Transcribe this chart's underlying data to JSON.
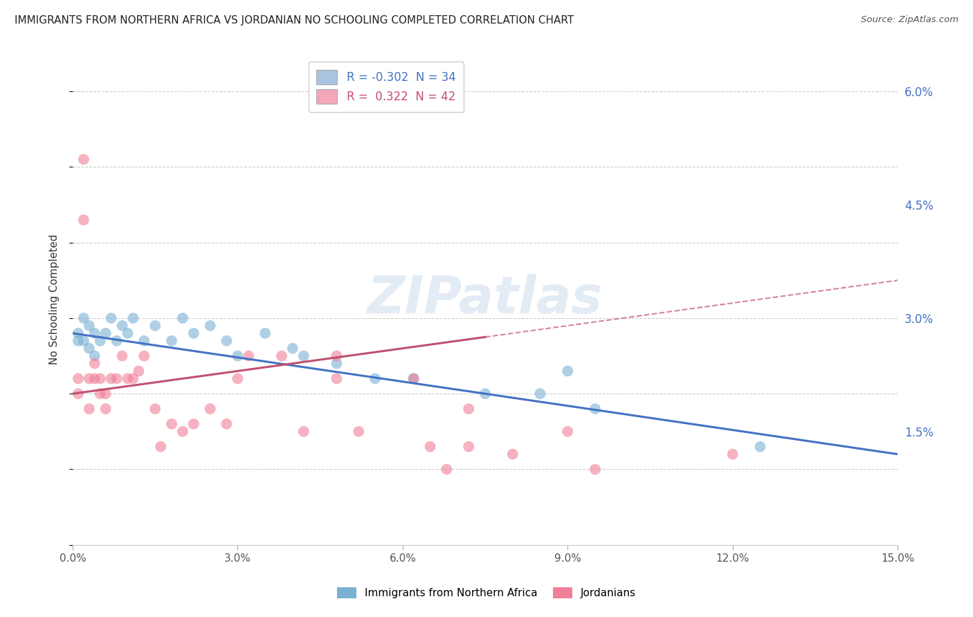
{
  "title": "IMMIGRANTS FROM NORTHERN AFRICA VS JORDANIAN NO SCHOOLING COMPLETED CORRELATION CHART",
  "source": "Source: ZipAtlas.com",
  "ylabel": "No Schooling Completed",
  "xlim": [
    0.0,
    0.15
  ],
  "ylim": [
    0.0,
    0.065
  ],
  "xticks": [
    0.0,
    0.03,
    0.06,
    0.09,
    0.12,
    0.15
  ],
  "xticklabels": [
    "0.0%",
    "3.0%",
    "6.0%",
    "9.0%",
    "12.0%",
    "15.0%"
  ],
  "yticks_right": [
    0.015,
    0.03,
    0.045,
    0.06
  ],
  "yticklabels_right": [
    "1.5%",
    "3.0%",
    "4.5%",
    "6.0%"
  ],
  "legend_line1": "R = -0.302  N = 34",
  "legend_line2": "R =  0.322  N = 42",
  "legend_color1": "#a8c4e0",
  "legend_color2": "#f4a7b9",
  "legend_text_color1": "#4472c4",
  "legend_text_color2": "#c05070",
  "series1_label": "Immigrants from Northern Africa",
  "series2_label": "Jordanians",
  "series1_color": "#7ab0d4",
  "series2_color": "#f08098",
  "line1_color": "#4472c4",
  "line2_color": "#c05070",
  "background_color": "#ffffff",
  "grid_color": "#cccccc",
  "watermark": "ZIPatlas",
  "blue_scatter_x": [
    0.001,
    0.001,
    0.002,
    0.002,
    0.003,
    0.003,
    0.004,
    0.004,
    0.005,
    0.006,
    0.007,
    0.008,
    0.009,
    0.01,
    0.011,
    0.013,
    0.015,
    0.018,
    0.02,
    0.022,
    0.025,
    0.028,
    0.03,
    0.035,
    0.04,
    0.042,
    0.048,
    0.055,
    0.062,
    0.075,
    0.085,
    0.09,
    0.095,
    0.125
  ],
  "blue_scatter_y": [
    0.028,
    0.027,
    0.03,
    0.027,
    0.029,
    0.026,
    0.028,
    0.025,
    0.027,
    0.028,
    0.03,
    0.027,
    0.029,
    0.028,
    0.03,
    0.027,
    0.029,
    0.027,
    0.03,
    0.028,
    0.029,
    0.027,
    0.025,
    0.028,
    0.026,
    0.025,
    0.024,
    0.022,
    0.022,
    0.02,
    0.02,
    0.023,
    0.018,
    0.013
  ],
  "pink_scatter_x": [
    0.001,
    0.001,
    0.002,
    0.002,
    0.003,
    0.003,
    0.004,
    0.004,
    0.005,
    0.005,
    0.006,
    0.006,
    0.007,
    0.008,
    0.009,
    0.01,
    0.011,
    0.012,
    0.013,
    0.015,
    0.016,
    0.018,
    0.02,
    0.022,
    0.025,
    0.028,
    0.03,
    0.032,
    0.038,
    0.042,
    0.048,
    0.048,
    0.052,
    0.062,
    0.065,
    0.068,
    0.072,
    0.072,
    0.08,
    0.09,
    0.095,
    0.12
  ],
  "pink_scatter_y": [
    0.02,
    0.022,
    0.043,
    0.051,
    0.022,
    0.018,
    0.024,
    0.022,
    0.022,
    0.02,
    0.02,
    0.018,
    0.022,
    0.022,
    0.025,
    0.022,
    0.022,
    0.023,
    0.025,
    0.018,
    0.013,
    0.016,
    0.015,
    0.016,
    0.018,
    0.016,
    0.022,
    0.025,
    0.025,
    0.015,
    0.025,
    0.022,
    0.015,
    0.022,
    0.013,
    0.01,
    0.013,
    0.018,
    0.012,
    0.015,
    0.01,
    0.012
  ],
  "blue_line_y0": 0.028,
  "blue_line_y1": 0.012,
  "pink_line_y0": 0.02,
  "pink_line_y1": 0.035
}
